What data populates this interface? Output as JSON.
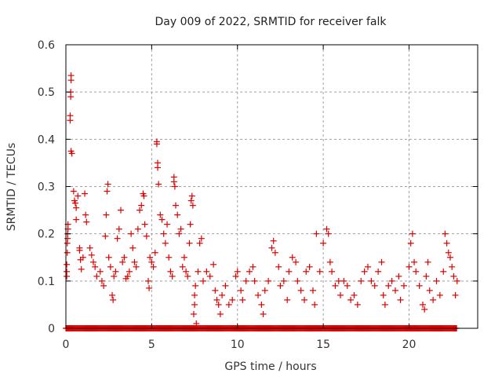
{
  "chart_data": {
    "type": "scatter",
    "title": "Day 009 of 2022, SRMTID for receiver falk",
    "xlabel": "GPS time / hours",
    "ylabel": "SRMTID / TECUs",
    "xlim": [
      0,
      24
    ],
    "ylim": [
      0,
      0.6
    ],
    "xticks": [
      0,
      5,
      10,
      15,
      20
    ],
    "xtick_labels": [
      "0",
      "5",
      "10",
      "15",
      "20"
    ],
    "yticks": [
      0,
      0.1,
      0.2,
      0.3,
      0.4,
      0.5,
      0.6
    ],
    "ytick_labels": [
      "0",
      "0.1",
      "0.2",
      "0.3",
      "0.4",
      "0.5",
      "0.6"
    ],
    "grid": true,
    "legend": "none",
    "marker": "plus",
    "color": "#e00000",
    "series": [
      {
        "name": "SRMTID",
        "points": [
          [
            0.05,
            0.11
          ],
          [
            0.05,
            0.12
          ],
          [
            0.05,
            0.135
          ],
          [
            0.08,
            0.16
          ],
          [
            0.08,
            0.18
          ],
          [
            0.1,
            0.19
          ],
          [
            0.1,
            0.2
          ],
          [
            0.12,
            0.21
          ],
          [
            0.12,
            0.22
          ],
          [
            0.3,
            0.535
          ],
          [
            0.3,
            0.525
          ],
          [
            0.28,
            0.5
          ],
          [
            0.28,
            0.49
          ],
          [
            0.25,
            0.45
          ],
          [
            0.25,
            0.44
          ],
          [
            0.3,
            0.375
          ],
          [
            0.35,
            0.37
          ],
          [
            0.45,
            0.29
          ],
          [
            0.5,
            0.27
          ],
          [
            0.55,
            0.265
          ],
          [
            0.6,
            0.255
          ],
          [
            0.7,
            0.28
          ],
          [
            0.6,
            0.23
          ],
          [
            0.8,
            0.17
          ],
          [
            0.8,
            0.165
          ],
          [
            0.85,
            0.145
          ],
          [
            0.9,
            0.125
          ],
          [
            1.0,
            0.15
          ],
          [
            1.1,
            0.285
          ],
          [
            1.15,
            0.24
          ],
          [
            1.2,
            0.225
          ],
          [
            1.4,
            0.17
          ],
          [
            1.5,
            0.155
          ],
          [
            1.6,
            0.14
          ],
          [
            1.7,
            0.13
          ],
          [
            1.8,
            0.11
          ],
          [
            2.0,
            0.12
          ],
          [
            2.1,
            0.1
          ],
          [
            2.2,
            0.09
          ],
          [
            2.3,
            0.195
          ],
          [
            2.35,
            0.24
          ],
          [
            2.4,
            0.29
          ],
          [
            2.45,
            0.305
          ],
          [
            2.5,
            0.15
          ],
          [
            2.6,
            0.13
          ],
          [
            2.7,
            0.07
          ],
          [
            2.75,
            0.06
          ],
          [
            2.8,
            0.11
          ],
          [
            2.9,
            0.12
          ],
          [
            3.0,
            0.19
          ],
          [
            3.1,
            0.21
          ],
          [
            3.2,
            0.25
          ],
          [
            3.3,
            0.14
          ],
          [
            3.4,
            0.15
          ],
          [
            3.5,
            0.105
          ],
          [
            3.6,
            0.11
          ],
          [
            3.7,
            0.12
          ],
          [
            3.8,
            0.2
          ],
          [
            3.9,
            0.17
          ],
          [
            4.0,
            0.14
          ],
          [
            4.1,
            0.13
          ],
          [
            4.2,
            0.21
          ],
          [
            4.3,
            0.25
          ],
          [
            4.4,
            0.26
          ],
          [
            4.5,
            0.285
          ],
          [
            4.55,
            0.28
          ],
          [
            4.6,
            0.22
          ],
          [
            4.7,
            0.195
          ],
          [
            4.8,
            0.1
          ],
          [
            4.85,
            0.085
          ],
          [
            4.9,
            0.15
          ],
          [
            5.0,
            0.14
          ],
          [
            5.1,
            0.13
          ],
          [
            5.2,
            0.16
          ],
          [
            5.3,
            0.395
          ],
          [
            5.3,
            0.39
          ],
          [
            5.35,
            0.35
          ],
          [
            5.35,
            0.34
          ],
          [
            5.4,
            0.305
          ],
          [
            5.5,
            0.24
          ],
          [
            5.6,
            0.23
          ],
          [
            5.7,
            0.2
          ],
          [
            5.8,
            0.18
          ],
          [
            5.9,
            0.22
          ],
          [
            6.0,
            0.15
          ],
          [
            6.1,
            0.12
          ],
          [
            6.2,
            0.11
          ],
          [
            6.3,
            0.32
          ],
          [
            6.3,
            0.31
          ],
          [
            6.35,
            0.3
          ],
          [
            6.4,
            0.26
          ],
          [
            6.5,
            0.24
          ],
          [
            6.6,
            0.2
          ],
          [
            6.7,
            0.21
          ],
          [
            6.8,
            0.13
          ],
          [
            6.9,
            0.15
          ],
          [
            7.0,
            0.12
          ],
          [
            7.1,
            0.11
          ],
          [
            7.2,
            0.18
          ],
          [
            7.25,
            0.22
          ],
          [
            7.3,
            0.27
          ],
          [
            7.35,
            0.28
          ],
          [
            7.4,
            0.26
          ],
          [
            7.45,
            0.03
          ],
          [
            7.5,
            0.05
          ],
          [
            7.5,
            0.07
          ],
          [
            7.55,
            0.09
          ],
          [
            7.6,
            0.01
          ],
          [
            7.7,
            0.12
          ],
          [
            7.8,
            0.18
          ],
          [
            7.9,
            0.19
          ],
          [
            8.0,
            0.1
          ],
          [
            8.2,
            0.12
          ],
          [
            8.4,
            0.11
          ],
          [
            8.6,
            0.135
          ],
          [
            8.7,
            0.08
          ],
          [
            8.8,
            0.06
          ],
          [
            8.9,
            0.05
          ],
          [
            9.0,
            0.03
          ],
          [
            9.1,
            0.07
          ],
          [
            9.3,
            0.09
          ],
          [
            9.5,
            0.05
          ],
          [
            9.7,
            0.06
          ],
          [
            9.9,
            0.11
          ],
          [
            10.0,
            0.12
          ],
          [
            10.2,
            0.08
          ],
          [
            10.3,
            0.06
          ],
          [
            10.5,
            0.1
          ],
          [
            10.7,
            0.12
          ],
          [
            10.9,
            0.13
          ],
          [
            11.0,
            0.1
          ],
          [
            11.2,
            0.07
          ],
          [
            11.4,
            0.05
          ],
          [
            11.5,
            0.03
          ],
          [
            11.6,
            0.08
          ],
          [
            11.8,
            0.1
          ],
          [
            12.0,
            0.17
          ],
          [
            12.1,
            0.185
          ],
          [
            12.2,
            0.16
          ],
          [
            12.4,
            0.13
          ],
          [
            12.5,
            0.09
          ],
          [
            12.7,
            0.1
          ],
          [
            12.9,
            0.06
          ],
          [
            13.0,
            0.12
          ],
          [
            13.2,
            0.15
          ],
          [
            13.4,
            0.14
          ],
          [
            13.5,
            0.1
          ],
          [
            13.7,
            0.08
          ],
          [
            13.9,
            0.06
          ],
          [
            14.0,
            0.12
          ],
          [
            14.2,
            0.13
          ],
          [
            14.4,
            0.08
          ],
          [
            14.5,
            0.05
          ],
          [
            14.6,
            0.2
          ],
          [
            14.8,
            0.12
          ],
          [
            15.0,
            0.18
          ],
          [
            15.2,
            0.21
          ],
          [
            15.3,
            0.2
          ],
          [
            15.4,
            0.14
          ],
          [
            15.5,
            0.12
          ],
          [
            15.7,
            0.09
          ],
          [
            15.9,
            0.1
          ],
          [
            16.0,
            0.07
          ],
          [
            16.2,
            0.1
          ],
          [
            16.4,
            0.09
          ],
          [
            16.6,
            0.06
          ],
          [
            16.8,
            0.07
          ],
          [
            17.0,
            0.05
          ],
          [
            17.2,
            0.1
          ],
          [
            17.4,
            0.12
          ],
          [
            17.6,
            0.13
          ],
          [
            17.8,
            0.1
          ],
          [
            18.0,
            0.09
          ],
          [
            18.2,
            0.12
          ],
          [
            18.4,
            0.14
          ],
          [
            18.5,
            0.07
          ],
          [
            18.6,
            0.05
          ],
          [
            18.8,
            0.09
          ],
          [
            19.0,
            0.1
          ],
          [
            19.2,
            0.08
          ],
          [
            19.4,
            0.11
          ],
          [
            19.5,
            0.06
          ],
          [
            19.7,
            0.09
          ],
          [
            20.0,
            0.13
          ],
          [
            20.1,
            0.18
          ],
          [
            20.2,
            0.2
          ],
          [
            20.3,
            0.14
          ],
          [
            20.4,
            0.12
          ],
          [
            20.6,
            0.09
          ],
          [
            20.8,
            0.05
          ],
          [
            20.9,
            0.04
          ],
          [
            21.0,
            0.11
          ],
          [
            21.1,
            0.14
          ],
          [
            21.2,
            0.08
          ],
          [
            21.4,
            0.06
          ],
          [
            21.6,
            0.1
          ],
          [
            21.8,
            0.07
          ],
          [
            22.0,
            0.12
          ],
          [
            22.1,
            0.2
          ],
          [
            22.2,
            0.18
          ],
          [
            22.3,
            0.16
          ],
          [
            22.4,
            0.15
          ],
          [
            22.5,
            0.13
          ],
          [
            22.6,
            0.11
          ],
          [
            22.7,
            0.07
          ],
          [
            22.8,
            0.1
          ]
        ],
        "zero_points_x_range": [
          0,
          22.8
        ]
      }
    ]
  }
}
